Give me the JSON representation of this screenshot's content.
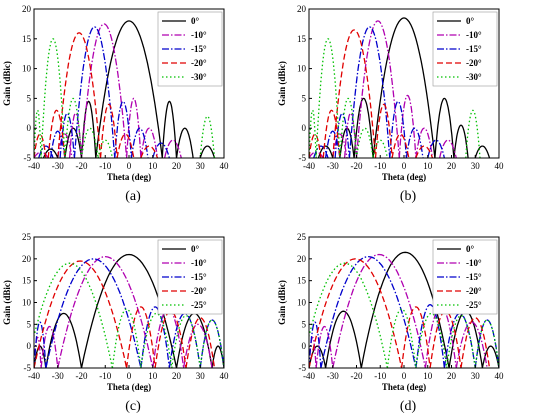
{
  "chart_data": [
    {
      "type": "line",
      "caption": "(a)",
      "xlabel": "Theta (deg)",
      "ylabel": "Gain (dBic)",
      "xlim": [
        -40,
        40
      ],
      "ylim": [
        -5,
        20
      ],
      "xticks": [
        -40,
        -30,
        -20,
        -10,
        0,
        10,
        20,
        30,
        40
      ],
      "yticks": [
        -5,
        0,
        5,
        10,
        15,
        20
      ],
      "legend_position": "top-right",
      "series": [
        {
          "name": "0°",
          "color": "#000000",
          "dash": "solid",
          "lobes": [
            [
              -36,
              -30,
              -3.5
            ],
            [
              -27,
              -20,
              0
            ],
            [
              -20,
              -14,
              4.5
            ],
            [
              -14,
              14,
              18
            ],
            [
              14,
              20,
              4.5
            ],
            [
              20,
              27,
              0
            ],
            [
              30,
              36,
              -3
            ]
          ]
        },
        {
          "name": "-10°",
          "color": "#b000b0",
          "dash": "dashdot",
          "lobes": [
            [
              -40,
              -34,
              -4
            ],
            [
              -30,
              -24,
              -1
            ],
            [
              -25,
              -20,
              2.5
            ],
            [
              -20,
              -1,
              17.5
            ],
            [
              -1,
              5,
              5
            ],
            [
              5,
              12,
              0
            ],
            [
              15,
              22,
              -2
            ]
          ]
        },
        {
          "name": "-15°",
          "color": "#0000cc",
          "dash": "dashdot",
          "lobes": [
            [
              -38,
              -32,
              -3
            ],
            [
              -33,
              -27,
              -0.5
            ],
            [
              -29,
              -23,
              2.5
            ],
            [
              -23,
              -6,
              17
            ],
            [
              -6,
              1,
              4.5
            ],
            [
              1,
              8,
              0
            ],
            [
              10,
              17,
              -2.5
            ]
          ]
        },
        {
          "name": "-20°",
          "color": "#e00000",
          "dash": "dashed",
          "lobes": [
            [
              -40,
              -35,
              -1
            ],
            [
              -34,
              -27,
              3
            ],
            [
              -30,
              -12,
              16
            ],
            [
              -12,
              -5,
              4
            ],
            [
              -5,
              2,
              -1
            ],
            [
              5,
              12,
              -3
            ]
          ]
        },
        {
          "name": "-30°",
          "color": "#00c000",
          "dash": "dotted",
          "lobes": [
            [
              -40,
              -37,
              3
            ],
            [
              -37,
              -27,
              15
            ],
            [
              -27,
              -20,
              5
            ],
            [
              -20,
              -13,
              0
            ],
            [
              -13,
              -7,
              -2
            ],
            [
              30,
              36,
              2
            ]
          ]
        }
      ]
    },
    {
      "type": "line",
      "caption": "(b)",
      "xlabel": "Theta (deg)",
      "ylabel": "Gain (dBic)",
      "xlim": [
        -40,
        40
      ],
      "ylim": [
        -5,
        20
      ],
      "xticks": [
        -40,
        -30,
        -20,
        -10,
        0,
        10,
        20,
        30,
        40
      ],
      "yticks": [
        -5,
        0,
        5,
        10,
        15,
        20
      ],
      "legend_position": "top-right",
      "series": [
        {
          "name": "0°",
          "color": "#000000",
          "dash": "solid",
          "lobes": [
            [
              -36,
              -30,
              -3
            ],
            [
              -27,
              -21,
              0
            ],
            [
              -21,
              -13,
              5
            ],
            [
              -13,
              13,
              18.5
            ],
            [
              13,
              21,
              5
            ],
            [
              21,
              27,
              0.5
            ],
            [
              30,
              36,
              -3
            ]
          ]
        },
        {
          "name": "-10°",
          "color": "#b000b0",
          "dash": "dashdot",
          "lobes": [
            [
              -40,
              -34,
              -4
            ],
            [
              -30,
              -24,
              -1
            ],
            [
              -25,
              -20,
              2.5
            ],
            [
              -20,
              -2,
              18
            ],
            [
              -2,
              5,
              5.5
            ],
            [
              5,
              12,
              0
            ],
            [
              15,
              22,
              -2
            ]
          ]
        },
        {
          "name": "-15°",
          "color": "#0000cc",
          "dash": "dashdot",
          "lobes": [
            [
              -38,
              -32,
              -3
            ],
            [
              -33,
              -27,
              -0.5
            ],
            [
              -29,
              -23,
              2.5
            ],
            [
              -23,
              -6,
              17
            ],
            [
              -6,
              1,
              4.5
            ],
            [
              1,
              8,
              0
            ],
            [
              10,
              17,
              -2
            ]
          ]
        },
        {
          "name": "-20°",
          "color": "#e00000",
          "dash": "dashed",
          "lobes": [
            [
              -40,
              -35,
              -1
            ],
            [
              -34,
              -27,
              3
            ],
            [
              -30,
              -12,
              16.5
            ],
            [
              -12,
              -5,
              4
            ],
            [
              -5,
              2,
              -1
            ],
            [
              5,
              12,
              -3
            ]
          ]
        },
        {
          "name": "-30°",
          "color": "#00c000",
          "dash": "dotted",
          "lobes": [
            [
              -40,
              -37,
              3
            ],
            [
              -37,
              -27,
              15
            ],
            [
              -27,
              -20,
              5
            ],
            [
              -20,
              -13,
              0
            ],
            [
              -13,
              -7,
              -2
            ],
            [
              26,
              32,
              3
            ]
          ]
        }
      ]
    },
    {
      "type": "line",
      "caption": "(c)",
      "xlabel": "Theta (deg)",
      "ylabel": "Gain (dBic)",
      "xlim": [
        -40,
        40
      ],
      "ylim": [
        -5,
        25
      ],
      "xticks": [
        -40,
        -30,
        -20,
        -10,
        0,
        10,
        20,
        30,
        40
      ],
      "yticks": [
        -5,
        0,
        5,
        10,
        15,
        20,
        25
      ],
      "legend_position": "top-right",
      "series": [
        {
          "name": "0°",
          "color": "#000000",
          "dash": "solid",
          "lobes": [
            [
              -40,
              -35,
              0
            ],
            [
              -35,
              -20,
              7.5
            ],
            [
              -20,
              20,
              21
            ],
            [
              20,
              35,
              7.5
            ],
            [
              35,
              40,
              0
            ]
          ]
        },
        {
          "name": "-10°",
          "color": "#b000b0",
          "dash": "dashdot",
          "lobes": [
            [
              -40,
              -37,
              2
            ],
            [
              -37,
              -30,
              4.5
            ],
            [
              -30,
              10,
              20.5
            ],
            [
              10,
              23,
              8.5
            ],
            [
              23,
              35,
              5
            ]
          ]
        },
        {
          "name": "-15°",
          "color": "#0000cc",
          "dash": "dashdot",
          "lobes": [
            [
              -40,
              -35,
              5.5
            ],
            [
              -35,
              5,
              20
            ],
            [
              5,
              17,
              9
            ],
            [
              17,
              30,
              7.5
            ],
            [
              30,
              40,
              6
            ]
          ]
        },
        {
          "name": "-20°",
          "color": "#e00000",
          "dash": "dashed",
          "lobes": [
            [
              -40,
              -1,
              19.5
            ],
            [
              -1,
              11,
              9
            ],
            [
              11,
              24,
              8
            ],
            [
              24,
              36,
              6.5
            ]
          ]
        },
        {
          "name": "-25°",
          "color": "#00c000",
          "dash": "dotted",
          "lobes": [
            [
              -43,
              -7,
              19
            ],
            [
              -7,
              5,
              8.5
            ],
            [
              5,
              18,
              7.5
            ],
            [
              18,
              30,
              7
            ],
            [
              30,
              40,
              6
            ]
          ]
        }
      ]
    },
    {
      "type": "line",
      "caption": "(d)",
      "xlabel": "Theta (deg)",
      "ylabel": "Gain (dBic)",
      "xlim": [
        -40,
        40
      ],
      "ylim": [
        -5,
        25
      ],
      "xticks": [
        -40,
        -30,
        -20,
        -10,
        0,
        10,
        20,
        30,
        40
      ],
      "yticks": [
        -5,
        0,
        5,
        10,
        15,
        20,
        25
      ],
      "legend_position": "top-right",
      "series": [
        {
          "name": "0°",
          "color": "#000000",
          "dash": "solid",
          "lobes": [
            [
              -40,
              -33,
              0
            ],
            [
              -33,
              -18,
              8
            ],
            [
              -18,
              19,
              21.5
            ],
            [
              19,
              33,
              8
            ],
            [
              33,
              40,
              0
            ]
          ]
        },
        {
          "name": "-10°",
          "color": "#b000b0",
          "dash": "dashdot",
          "lobes": [
            [
              -40,
              -37,
              2
            ],
            [
              -37,
              -30,
              4.5
            ],
            [
              -30,
              9,
              21
            ],
            [
              9,
              22,
              9
            ],
            [
              22,
              35,
              5.5
            ]
          ]
        },
        {
          "name": "-15°",
          "color": "#0000cc",
          "dash": "dashdot",
          "lobes": [
            [
              -40,
              -35,
              5.5
            ],
            [
              -35,
              5,
              20.5
            ],
            [
              5,
              17,
              9.5
            ],
            [
              17,
              30,
              7.5
            ],
            [
              30,
              40,
              6
            ]
          ]
        },
        {
          "name": "-20°",
          "color": "#e00000",
          "dash": "dashed",
          "lobes": [
            [
              -40,
              -1,
              20
            ],
            [
              -1,
              11,
              9
            ],
            [
              11,
              24,
              8
            ],
            [
              24,
              36,
              6.5
            ]
          ]
        },
        {
          "name": "-25°",
          "color": "#00c000",
          "dash": "dotted",
          "lobes": [
            [
              -43,
              -7,
              19
            ],
            [
              -7,
              5,
              8.5
            ],
            [
              5,
              18,
              7.5
            ],
            [
              18,
              30,
              7
            ],
            [
              30,
              40,
              6
            ]
          ]
        }
      ]
    }
  ]
}
